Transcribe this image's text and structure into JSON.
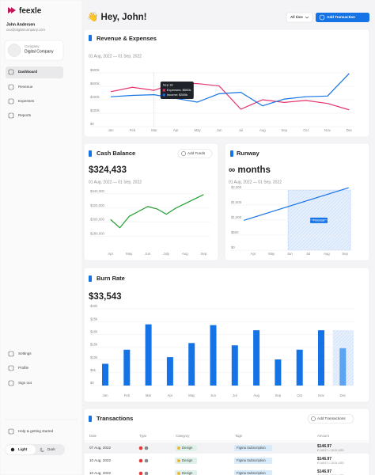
{
  "sidebar": {
    "brand": "feexle",
    "user_name": "John Andersen",
    "user_email": "ceo@digitalcompany.com",
    "company_label": "Company",
    "company_name": "Digital Company",
    "nav": [
      "Dashboard",
      "Revenue",
      "Expenses",
      "Reports"
    ],
    "footer_nav": [
      "Settings",
      "Profile",
      "Sign out"
    ],
    "help": "Help & getting started",
    "theme": [
      "Light",
      "Dark"
    ]
  },
  "header": {
    "greeting": "👋 Hey, John!",
    "filter": "All time",
    "button": "Add Transaction"
  },
  "chart_data": [
    {
      "type": "line",
      "title": "Revenue & Expenses",
      "subtitle": "01 Aug, 2022 — 01 Sep, 2022",
      "categories": [
        "Jan",
        "Feb",
        "Mar",
        "Apr",
        "May",
        "Jun",
        "Jul",
        "Aug",
        "Sep",
        "Oct",
        "Nov",
        "Dec"
      ],
      "series": [
        {
          "color": "#e6336f",
          "values": [
            520000,
            585000,
            540000,
            650000,
            640000,
            605000,
            260000,
            400000,
            360000,
            390000,
            345000,
            250000
          ]
        },
        {
          "color": "#1473e6",
          "values": [
            445000,
            465000,
            475000,
            420000,
            365000,
            490000,
            510000,
            310000,
            410000,
            445000,
            455000,
            790000
          ]
        }
      ],
      "ylim": [
        0,
        800000
      ],
      "yticks": [
        {
          "value": 0,
          "label": "$0"
        },
        {
          "value": 200000,
          "label": "$200k"
        },
        {
          "value": 400000,
          "label": "$400k"
        },
        {
          "value": 600000,
          "label": "$600k"
        },
        {
          "value": 800000,
          "label": "$800k"
        }
      ],
      "grid": true,
      "tooltip": {
        "title": "Sep 18",
        "items": [
          "Expenses: $500k",
          "Income: $300k"
        ],
        "category": 2
      }
    },
    {
      "type": "line",
      "title": "Cash Balance",
      "button": "Add Funds",
      "headline": "$324,433",
      "subtitle": "01 Aug, 2022 — 01 Sep, 2022",
      "x": [
        0,
        0.5,
        1,
        1.5,
        2,
        2.5,
        3,
        3.5,
        4,
        4.5,
        5
      ],
      "values": [
        303600,
        291800,
        308000,
        315000,
        322000,
        318600,
        311000,
        319600,
        326000,
        332500,
        339000
      ],
      "color": "#1e9e2e",
      "xlim": [
        -0.2,
        5.2
      ],
      "xticks": [
        {
          "value": 0,
          "label": "Apr"
        },
        {
          "value": 1,
          "label": "May"
        },
        {
          "value": 2,
          "label": "Jun"
        },
        {
          "value": 3,
          "label": "July"
        },
        {
          "value": 4,
          "label": "Aug"
        },
        {
          "value": 5,
          "label": "Sep"
        }
      ],
      "ylim": [
        260000,
        350000
      ],
      "yticks": [
        {
          "value": 280000,
          "label": "$280,000"
        },
        {
          "value": 300000,
          "label": "$300,000"
        },
        {
          "value": 320000,
          "label": "$320,000"
        },
        {
          "value": 340000,
          "label": "$340,000"
        }
      ],
      "grid": true
    },
    {
      "type": "line",
      "title": "Runway",
      "headline": "∞ months",
      "subtitle": "01 Aug, 2022 — 01 Sep, 2022",
      "x": [
        -0.5,
        5.2
      ],
      "values": [
        990,
        2070
      ],
      "color": "#1473e6",
      "forecast_from": 1.9,
      "forecast_label": "Forecast",
      "xlim": [
        -0.6,
        5.3
      ],
      "xticks": [
        {
          "value": 0,
          "label": "Apr"
        },
        {
          "value": 1,
          "label": "May"
        },
        {
          "value": 2,
          "label": "Jun"
        },
        {
          "value": 3,
          "label": "Jul"
        },
        {
          "value": 4,
          "label": "Aug"
        },
        {
          "value": 5,
          "label": "Sep"
        }
      ],
      "ylim": [
        0,
        2100
      ],
      "yticks": [
        {
          "value": 0,
          "label": "$0"
        },
        {
          "value": 500,
          "label": "$500"
        },
        {
          "value": 1000,
          "label": "$1,000"
        },
        {
          "value": 1500,
          "label": "$1,500"
        },
        {
          "value": 2000,
          "label": "$2,000"
        }
      ],
      "grid": true
    },
    {
      "type": "bar",
      "title": "Burn Rate",
      "headline": "$33,543",
      "categories": [
        "Jan",
        "Feb",
        "Mar",
        "Apr",
        "May",
        "Jun",
        "Jul",
        "Aug",
        "Sep",
        "Oct",
        "Nov",
        "Dec"
      ],
      "values": [
        8500,
        14000,
        23900,
        11100,
        16600,
        23600,
        15700,
        21600,
        10200,
        14000,
        21600,
        14600
      ],
      "color": "#1473e6",
      "forecast_color": "#5ea2f2",
      "forecast_from": 11,
      "ylim": [
        0,
        30000
      ],
      "yticks": [
        {
          "value": 0,
          "label": "$0"
        },
        {
          "value": 5000,
          "label": "$5k"
        },
        {
          "value": 10000,
          "label": "$10k"
        },
        {
          "value": 15000,
          "label": "$15k"
        },
        {
          "value": 20000,
          "label": "$20k"
        },
        {
          "value": 25000,
          "label": "$25k"
        },
        {
          "value": 30000,
          "label": "$30k"
        }
      ],
      "grid": true
    }
  ],
  "transactions": {
    "title": "Transactions",
    "button": "Add Transactions",
    "columns": [
      "Date",
      "Type",
      "Category",
      "Tags",
      "Amount"
    ],
    "rows": [
      [
        "07 Aug, 2022",
        "Design",
        "Figma Subscription",
        "$146.97",
        "€ 146.97 ≈ 10.01 USD"
      ],
      [
        "10 Aug, 2022",
        "Design",
        "Figma Subscription",
        "$146.97",
        "€ 146.97 ≈ 10.01 USD"
      ],
      [
        "10 Aug, 2022",
        "Design",
        "Figma Subscription",
        "$146.97",
        "€ 146.97 ≈ 10.01 USD"
      ]
    ]
  }
}
